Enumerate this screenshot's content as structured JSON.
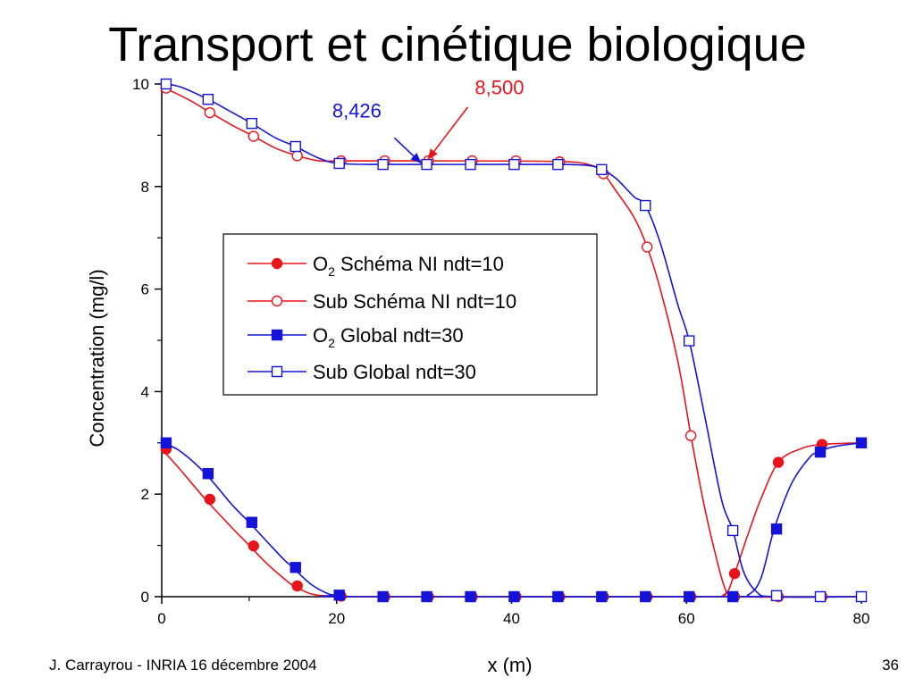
{
  "slide": {
    "title": "Transport et cinétique biologique",
    "footer_left": "J. Carrayrou  -  INRIA 16 décembre 2004",
    "slide_number": "36"
  },
  "colors": {
    "red": "#e8141b",
    "blue": "#1414d8"
  },
  "chart_data": {
    "type": "line",
    "xlabel": "x (m)",
    "ylabel": "Concentration (mg/l)",
    "xlim": [
      0,
      80
    ],
    "ylim": [
      0,
      10
    ],
    "xticks": [
      0,
      20,
      40,
      60,
      80
    ],
    "yticks": [
      0,
      2,
      4,
      6,
      8,
      10
    ],
    "grid": false,
    "legend_position": "center",
    "legend": [
      {
        "prefix": "O",
        "sub": "2",
        "text": " Schéma NI ndt=10",
        "series": 0
      },
      {
        "prefix": "",
        "sub": "",
        "text": "Sub Schéma NI ndt=10",
        "series": 1
      },
      {
        "prefix": "O",
        "sub": "2",
        "text": " Global ndt=30",
        "series": 2
      },
      {
        "prefix": "",
        "sub": "",
        "text": "Sub Global ndt=30",
        "series": 3
      }
    ],
    "series": [
      {
        "color": "#e8141b",
        "marker": "circle",
        "filled": true,
        "line": [
          [
            0,
            2.88
          ],
          [
            2,
            2.5
          ],
          [
            5,
            1.9
          ],
          [
            8,
            1.35
          ],
          [
            10,
            1.0
          ],
          [
            12,
            0.65
          ],
          [
            14,
            0.35
          ],
          [
            15,
            0.22
          ],
          [
            17,
            0.06
          ],
          [
            19,
            0.01
          ],
          [
            20,
            0
          ],
          [
            40,
            0
          ],
          [
            60,
            0
          ],
          [
            63,
            0
          ],
          [
            64.5,
            0.05
          ],
          [
            65.5,
            0.45
          ],
          [
            67,
            1.2
          ],
          [
            68.5,
            1.9
          ],
          [
            70.5,
            2.62
          ],
          [
            73,
            2.88
          ],
          [
            75.5,
            2.97
          ],
          [
            80,
            3.0
          ]
        ],
        "markers": [
          [
            0.5,
            2.88
          ],
          [
            5.5,
            1.9
          ],
          [
            10.5,
            0.99
          ],
          [
            15.5,
            0.21
          ],
          [
            20.5,
            0.01
          ],
          [
            25.5,
            0
          ],
          [
            30.5,
            0
          ],
          [
            35.5,
            0
          ],
          [
            40.5,
            0
          ],
          [
            45.5,
            0
          ],
          [
            50.5,
            0
          ],
          [
            55.5,
            0
          ],
          [
            60.5,
            0
          ],
          [
            65.5,
            0.45
          ],
          [
            70.5,
            2.62
          ],
          [
            75.5,
            2.97
          ],
          [
            80,
            3.0
          ]
        ]
      },
      {
        "color": "#e8141b",
        "marker": "circle",
        "filled": false,
        "line": [
          [
            0,
            9.95
          ],
          [
            3,
            9.7
          ],
          [
            5.5,
            9.45
          ],
          [
            8,
            9.2
          ],
          [
            10.5,
            8.98
          ],
          [
            13,
            8.75
          ],
          [
            15.5,
            8.6
          ],
          [
            18,
            8.5
          ],
          [
            20.5,
            8.5
          ],
          [
            30,
            8.5
          ],
          [
            45,
            8.49
          ],
          [
            49,
            8.42
          ],
          [
            50.5,
            8.25
          ],
          [
            52,
            7.9
          ],
          [
            54,
            7.4
          ],
          [
            55.5,
            6.82
          ],
          [
            57,
            6.0
          ],
          [
            59,
            4.6
          ],
          [
            60.5,
            3.15
          ],
          [
            62,
            1.8
          ],
          [
            63.5,
            0.7
          ],
          [
            64.5,
            0.12
          ],
          [
            65.5,
            0
          ],
          [
            80,
            0
          ]
        ],
        "markers": [
          [
            0.5,
            9.92
          ],
          [
            5.5,
            9.44
          ],
          [
            10.5,
            8.98
          ],
          [
            15.5,
            8.6
          ],
          [
            20.5,
            8.5
          ],
          [
            25.5,
            8.5
          ],
          [
            30.5,
            8.5
          ],
          [
            35.5,
            8.5
          ],
          [
            40.5,
            8.5
          ],
          [
            45.5,
            8.48
          ],
          [
            50.5,
            8.25
          ],
          [
            55.5,
            6.82
          ],
          [
            60.5,
            3.14
          ],
          [
            65.5,
            0
          ],
          [
            70.5,
            0
          ],
          [
            75.5,
            0
          ]
        ]
      },
      {
        "color": "#1414d8",
        "marker": "square",
        "filled": true,
        "line": [
          [
            0,
            3.0
          ],
          [
            2,
            2.85
          ],
          [
            5,
            2.4
          ],
          [
            8,
            1.8
          ],
          [
            10,
            1.45
          ],
          [
            12,
            1.08
          ],
          [
            14,
            0.72
          ],
          [
            15,
            0.57
          ],
          [
            17,
            0.25
          ],
          [
            19,
            0.06
          ],
          [
            20,
            0.03
          ],
          [
            22,
            0
          ],
          [
            65,
            0
          ],
          [
            67,
            0.03
          ],
          [
            68.5,
            0.35
          ],
          [
            70,
            1.3
          ],
          [
            72,
            2.2
          ],
          [
            74,
            2.7
          ],
          [
            75,
            2.82
          ],
          [
            77,
            2.93
          ],
          [
            80,
            3.0
          ]
        ],
        "markers": [
          [
            0.5,
            3.0
          ],
          [
            5.3,
            2.4
          ],
          [
            10.3,
            1.45
          ],
          [
            15.3,
            0.57
          ],
          [
            20.3,
            0.03
          ],
          [
            25.3,
            0
          ],
          [
            30.3,
            0
          ],
          [
            35.3,
            0
          ],
          [
            40.3,
            0
          ],
          [
            45.3,
            0
          ],
          [
            50.3,
            0
          ],
          [
            55.3,
            0
          ],
          [
            60.3,
            0
          ],
          [
            65.3,
            0
          ],
          [
            70.3,
            1.32
          ],
          [
            75.3,
            2.82
          ],
          [
            80,
            3.0
          ]
        ]
      },
      {
        "color": "#1414d8",
        "marker": "square",
        "filled": false,
        "line": [
          [
            0,
            10.0
          ],
          [
            2,
            9.95
          ],
          [
            5.3,
            9.7
          ],
          [
            8,
            9.45
          ],
          [
            10.3,
            9.23
          ],
          [
            13,
            8.95
          ],
          [
            15.3,
            8.78
          ],
          [
            18,
            8.55
          ],
          [
            20.3,
            8.45
          ],
          [
            25,
            8.43
          ],
          [
            40,
            8.43
          ],
          [
            48,
            8.42
          ],
          [
            50.3,
            8.33
          ],
          [
            52,
            8.15
          ],
          [
            54,
            7.8
          ],
          [
            55.3,
            7.63
          ],
          [
            57,
            6.9
          ],
          [
            59,
            5.7
          ],
          [
            60.3,
            5.0
          ],
          [
            62,
            3.6
          ],
          [
            64,
            1.9
          ],
          [
            65.3,
            1.3
          ],
          [
            66.5,
            0.5
          ],
          [
            68,
            0.1
          ],
          [
            70,
            0
          ],
          [
            80,
            0
          ]
        ],
        "markers": [
          [
            0.5,
            10.0
          ],
          [
            5.3,
            9.7
          ],
          [
            10.3,
            9.23
          ],
          [
            15.3,
            8.78
          ],
          [
            20.3,
            8.45
          ],
          [
            25.3,
            8.43
          ],
          [
            30.3,
            8.43
          ],
          [
            35.3,
            8.43
          ],
          [
            40.3,
            8.43
          ],
          [
            45.3,
            8.43
          ],
          [
            50.3,
            8.33
          ],
          [
            55.3,
            7.63
          ],
          [
            60.3,
            4.99
          ],
          [
            65.3,
            1.29
          ],
          [
            70.3,
            0.02
          ],
          [
            75.3,
            0
          ],
          [
            80,
            0
          ]
        ]
      }
    ],
    "annotations": [
      {
        "label": "8,426",
        "color": "#1414d8",
        "text_at": [
          19.5,
          9.35
        ],
        "arrow_from": [
          26.6,
          8.95
        ],
        "arrow_to": [
          29.7,
          8.45
        ]
      },
      {
        "label": "8,500",
        "color": "#e8141b",
        "text_at": [
          35.8,
          9.8
        ],
        "arrow_from": [
          35.0,
          9.55
        ],
        "arrow_to": [
          30.4,
          8.52
        ]
      }
    ]
  }
}
